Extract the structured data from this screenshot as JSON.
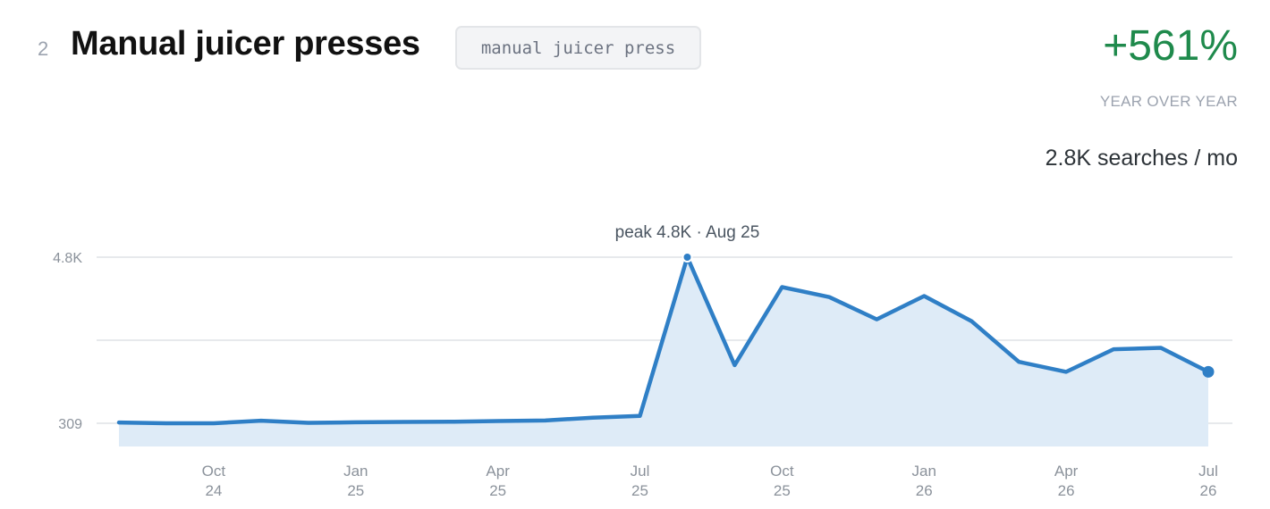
{
  "header": {
    "rank": "2",
    "title": "Manual juicer presses",
    "tag": "manual juicer press",
    "growth": "+561%",
    "growth_label": "YEAR OVER YEAR",
    "volume": "2.8K searches / mo"
  },
  "chart_data": {
    "type": "area",
    "title": "",
    "xlabel": "",
    "ylabel": "",
    "x": [
      "Aug 24",
      "Sep 24",
      "Oct 24",
      "Nov 24",
      "Dec 24",
      "Jan 25",
      "Feb 25",
      "Mar 25",
      "Apr 25",
      "May 25",
      "Jun 25",
      "Jul 25",
      "Aug 25",
      "Sep 25",
      "Oct 25",
      "Nov 25",
      "Dec 25",
      "Jan 26",
      "Feb 26",
      "Mar 26",
      "Apr 26",
      "May 26",
      "Jun 26",
      "Jul 26"
    ],
    "values": [
      330,
      310,
      310,
      380,
      320,
      335,
      345,
      350,
      370,
      385,
      460,
      510,
      4800,
      1880,
      3990,
      3720,
      3120,
      3750,
      3070,
      1970,
      1700,
      2310,
      2350,
      1700
    ],
    "ylim": [
      309,
      4800
    ],
    "yticks": [
      {
        "value": 309,
        "label": "309"
      },
      {
        "value": 4800,
        "label": "4.8K"
      }
    ],
    "gridlines": [
      309,
      2554.5,
      4800
    ],
    "xticks": [
      {
        "index": 2,
        "month": "Oct",
        "year": "24"
      },
      {
        "index": 5,
        "month": "Jan",
        "year": "25"
      },
      {
        "index": 8,
        "month": "Apr",
        "year": "25"
      },
      {
        "index": 11,
        "month": "Jul",
        "year": "25"
      },
      {
        "index": 14,
        "month": "Oct",
        "year": "25"
      },
      {
        "index": 17,
        "month": "Jan",
        "year": "26"
      },
      {
        "index": 20,
        "month": "Apr",
        "year": "26"
      },
      {
        "index": 23,
        "month": "Jul",
        "year": "26"
      }
    ],
    "peak_index": 12,
    "peak_label": "peak 4.8K · Aug 25",
    "grid": true,
    "legend": "none",
    "colors": {
      "line": "#2f7fc6",
      "fill": "#deebf7",
      "grid": "#e7e9ec"
    }
  }
}
